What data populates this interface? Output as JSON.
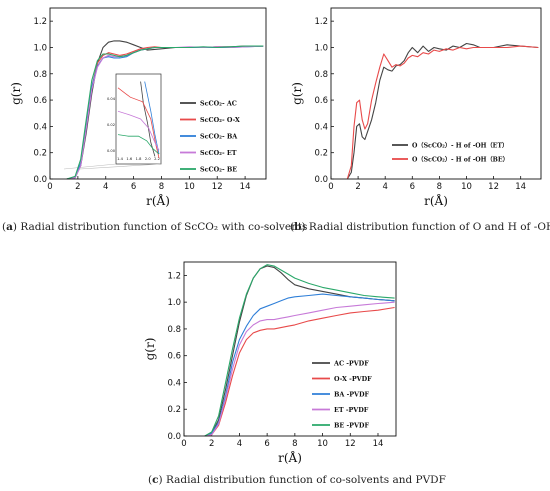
{
  "captions": {
    "a": {
      "tag": "a",
      "text": "Radial distribution function of ScCO₂ with co-solvents"
    },
    "b": {
      "tag": "b",
      "text": "Radial distribution function of O and H of -OH"
    },
    "c": {
      "tag": "c",
      "text": "Radial distribution function of co-solvents and PVDF"
    }
  },
  "chart_data": [
    {
      "id": "a",
      "type": "line",
      "xlabel": "r(Å)",
      "ylabel": "g(r)",
      "xlim": [
        0,
        15.5
      ],
      "ylim": [
        0,
        1.3
      ],
      "xticks": [
        0,
        2,
        4,
        6,
        8,
        10,
        12,
        14
      ],
      "yticks": [
        0.0,
        0.2,
        0.4,
        0.6,
        0.8,
        1.0,
        1.2
      ],
      "legend": "right",
      "series": [
        {
          "name": "ScCO₂- AC",
          "color": "#444444",
          "x": [
            1.2,
            1.8,
            2.2,
            2.6,
            3.0,
            3.4,
            3.8,
            4.2,
            4.6,
            5.0,
            5.5,
            6.0,
            6.5,
            7.0,
            7.5,
            8.0,
            9.0,
            10,
            11,
            12,
            13,
            14,
            15.3
          ],
          "y": [
            0,
            0.01,
            0.1,
            0.35,
            0.65,
            0.88,
            1.0,
            1.04,
            1.05,
            1.05,
            1.04,
            1.02,
            1.0,
            0.98,
            0.985,
            0.99,
            1.0,
            1.0,
            1.0,
            1.005,
            1.005,
            1.01,
            1.01
          ]
        },
        {
          "name": "ScCO₂- O-X",
          "color": "#e84a4a",
          "x": [
            1.2,
            1.8,
            2.2,
            2.6,
            3.0,
            3.4,
            3.8,
            4.2,
            4.6,
            5.0,
            5.5,
            6.0,
            6.5,
            7.0,
            7.5,
            8.0,
            9.0,
            10,
            11,
            12,
            13,
            14,
            15.3
          ],
          "y": [
            0,
            0.01,
            0.12,
            0.4,
            0.7,
            0.88,
            0.94,
            0.96,
            0.95,
            0.94,
            0.95,
            0.97,
            0.99,
            1.0,
            1.005,
            1.0,
            1.0,
            1.0,
            1.0,
            1.005,
            1.0,
            1.01,
            1.01
          ]
        },
        {
          "name": "ScCO₂- BA",
          "color": "#2f7fd8",
          "x": [
            1.2,
            1.8,
            2.2,
            2.6,
            3.0,
            3.4,
            3.8,
            4.2,
            4.6,
            5.0,
            5.5,
            6.0,
            6.5,
            7.0,
            7.5,
            8.0,
            9.0,
            10,
            11,
            12,
            13,
            14,
            15.3
          ],
          "y": [
            0,
            0.01,
            0.12,
            0.4,
            0.7,
            0.86,
            0.92,
            0.93,
            0.92,
            0.92,
            0.93,
            0.96,
            0.98,
            0.99,
            1.0,
            1.0,
            1.0,
            1.0,
            1.0,
            1.0,
            1.0,
            1.005,
            1.01
          ]
        },
        {
          "name": "ScCO₂- ET",
          "color": "#c77ad8",
          "x": [
            1.2,
            1.8,
            2.2,
            2.6,
            3.0,
            3.4,
            3.8,
            4.2,
            4.6,
            5.0,
            5.5,
            6.0,
            6.5,
            7.0,
            7.5,
            8.0,
            9.0,
            10,
            11,
            12,
            13,
            14,
            15.3
          ],
          "y": [
            0,
            0.01,
            0.1,
            0.38,
            0.68,
            0.85,
            0.92,
            0.94,
            0.93,
            0.93,
            0.94,
            0.96,
            0.98,
            0.99,
            1.0,
            1.0,
            1.0,
            1.005,
            1.0,
            1.005,
            1.0,
            1.005,
            1.01
          ]
        },
        {
          "name": "ScCO₂- BE",
          "color": "#2aa86a",
          "x": [
            1.2,
            1.8,
            2.2,
            2.6,
            3.0,
            3.4,
            3.8,
            4.2,
            4.6,
            5.0,
            5.5,
            6.0,
            6.5,
            7.0,
            7.5,
            8.0,
            9.0,
            10,
            11,
            12,
            13,
            14,
            15.3
          ],
          "y": [
            0,
            0.02,
            0.15,
            0.45,
            0.75,
            0.9,
            0.95,
            0.95,
            0.94,
            0.93,
            0.94,
            0.96,
            0.98,
            0.99,
            1.0,
            1.0,
            1.0,
            1.0,
            1.005,
            1.0,
            1.005,
            1.01,
            1.01
          ]
        }
      ],
      "inset": {
        "xticks": [
          "1.4",
          "1.6",
          "1.8",
          "2.0",
          "2.2"
        ],
        "yticks": [
          "0.00",
          "0.02",
          "0.04"
        ]
      }
    },
    {
      "id": "b",
      "type": "line",
      "xlabel": "r(Å)",
      "ylabel": "g(r)",
      "xlim": [
        0,
        15.5
      ],
      "ylim": [
        0,
        1.3
      ],
      "xticks": [
        0,
        2,
        4,
        6,
        8,
        10,
        12,
        14
      ],
      "yticks": [
        0.0,
        0.2,
        0.4,
        0.6,
        0.8,
        1.0,
        1.2
      ],
      "legend": "bottom-center",
      "series": [
        {
          "name": "O（ScCO₂）- H of -OH（ET）",
          "color": "#444444",
          "x": [
            1.2,
            1.5,
            1.7,
            1.9,
            2.1,
            2.3,
            2.5,
            2.7,
            3.0,
            3.3,
            3.6,
            3.9,
            4.2,
            4.5,
            4.8,
            5.1,
            5.4,
            5.7,
            6.0,
            6.4,
            6.8,
            7.2,
            7.6,
            8.0,
            8.5,
            9.0,
            9.5,
            10,
            10.5,
            11,
            12,
            13,
            14,
            15.3
          ],
          "y": [
            0,
            0.05,
            0.2,
            0.4,
            0.42,
            0.32,
            0.3,
            0.36,
            0.45,
            0.58,
            0.75,
            0.85,
            0.83,
            0.82,
            0.86,
            0.87,
            0.9,
            0.96,
            1.0,
            0.96,
            1.01,
            0.97,
            1.0,
            0.99,
            0.98,
            1.01,
            1.0,
            1.03,
            1.02,
            1.0,
            1.0,
            1.02,
            1.01,
            1.0
          ]
        },
        {
          "name": "O（ScCO₂）- H of -OH（BE）",
          "color": "#e84a4a",
          "x": [
            1.2,
            1.5,
            1.7,
            1.9,
            2.1,
            2.3,
            2.5,
            2.7,
            3.0,
            3.3,
            3.6,
            3.9,
            4.2,
            4.5,
            4.8,
            5.1,
            5.4,
            5.7,
            6.0,
            6.4,
            6.8,
            7.2,
            7.6,
            8.0,
            8.5,
            9.0,
            9.5,
            10,
            10.5,
            11,
            12,
            13,
            14,
            15.3
          ],
          "y": [
            0,
            0.1,
            0.4,
            0.58,
            0.6,
            0.45,
            0.38,
            0.42,
            0.6,
            0.73,
            0.85,
            0.95,
            0.9,
            0.85,
            0.87,
            0.86,
            0.88,
            0.92,
            0.94,
            0.93,
            0.96,
            0.95,
            0.98,
            0.97,
            0.99,
            0.98,
            1.0,
            0.99,
            1.0,
            1.0,
            1.0,
            1.0,
            1.01,
            1.0
          ]
        }
      ]
    },
    {
      "id": "c",
      "type": "line",
      "xlabel": "r(Å)",
      "ylabel": "g(r)",
      "xlim": [
        0,
        15.3
      ],
      "ylim": [
        0,
        1.3
      ],
      "xticks": [
        0,
        2,
        4,
        6,
        8,
        10,
        12,
        14
      ],
      "yticks": [
        0.0,
        0.2,
        0.4,
        0.6,
        0.8,
        1.0,
        1.2
      ],
      "legend": "right",
      "series": [
        {
          "name": "AC -PVDF",
          "color": "#444444",
          "x": [
            1.5,
            2.0,
            2.5,
            3.0,
            3.5,
            4.0,
            4.5,
            5.0,
            5.5,
            6.0,
            6.5,
            7.0,
            7.5,
            8.0,
            9.0,
            10,
            11,
            12,
            13,
            14,
            15.2
          ],
          "y": [
            0,
            0.02,
            0.12,
            0.35,
            0.6,
            0.85,
            1.05,
            1.18,
            1.25,
            1.27,
            1.26,
            1.22,
            1.17,
            1.13,
            1.1,
            1.08,
            1.06,
            1.04,
            1.03,
            1.02,
            1.01
          ]
        },
        {
          "name": "O-X -PVDF",
          "color": "#e84a4a",
          "x": [
            1.5,
            2.0,
            2.5,
            3.0,
            3.5,
            4.0,
            4.5,
            5.0,
            5.5,
            6.0,
            6.5,
            7.0,
            7.5,
            8.0,
            9.0,
            10,
            11,
            12,
            13,
            14,
            15.2
          ],
          "y": [
            0,
            0.01,
            0.08,
            0.25,
            0.45,
            0.62,
            0.72,
            0.77,
            0.79,
            0.8,
            0.8,
            0.81,
            0.82,
            0.83,
            0.86,
            0.88,
            0.9,
            0.92,
            0.93,
            0.94,
            0.96
          ]
        },
        {
          "name": "BA -PVDF",
          "color": "#2f7fd8",
          "x": [
            1.5,
            2.0,
            2.5,
            3.0,
            3.5,
            4.0,
            4.5,
            5.0,
            5.5,
            6.0,
            6.5,
            7.0,
            7.5,
            8.0,
            9.0,
            10,
            11,
            12,
            13,
            14,
            15.2
          ],
          "y": [
            0,
            0.02,
            0.1,
            0.3,
            0.55,
            0.72,
            0.82,
            0.9,
            0.95,
            0.97,
            0.99,
            1.01,
            1.03,
            1.04,
            1.05,
            1.06,
            1.05,
            1.04,
            1.03,
            1.02,
            1.01
          ]
        },
        {
          "name": "ET -PVDF",
          "color": "#c77ad8",
          "x": [
            1.5,
            2.0,
            2.5,
            3.0,
            3.5,
            4.0,
            4.5,
            5.0,
            5.5,
            6.0,
            6.5,
            7.0,
            7.5,
            8.0,
            9.0,
            10,
            11,
            12,
            13,
            14,
            15.2
          ],
          "y": [
            0,
            0.01,
            0.09,
            0.28,
            0.5,
            0.68,
            0.78,
            0.83,
            0.86,
            0.87,
            0.87,
            0.88,
            0.89,
            0.9,
            0.92,
            0.94,
            0.96,
            0.97,
            0.98,
            0.99,
            1.0
          ]
        },
        {
          "name": "BE -PVDF",
          "color": "#2aa86a",
          "x": [
            1.5,
            2.0,
            2.5,
            3.0,
            3.5,
            4.0,
            4.5,
            5.0,
            5.5,
            6.0,
            6.5,
            7.0,
            7.5,
            8.0,
            9.0,
            10,
            11,
            12,
            13,
            14,
            15.2
          ],
          "y": [
            0,
            0.03,
            0.15,
            0.4,
            0.65,
            0.88,
            1.06,
            1.18,
            1.25,
            1.28,
            1.27,
            1.24,
            1.21,
            1.18,
            1.14,
            1.11,
            1.09,
            1.07,
            1.05,
            1.04,
            1.03
          ]
        }
      ]
    }
  ]
}
